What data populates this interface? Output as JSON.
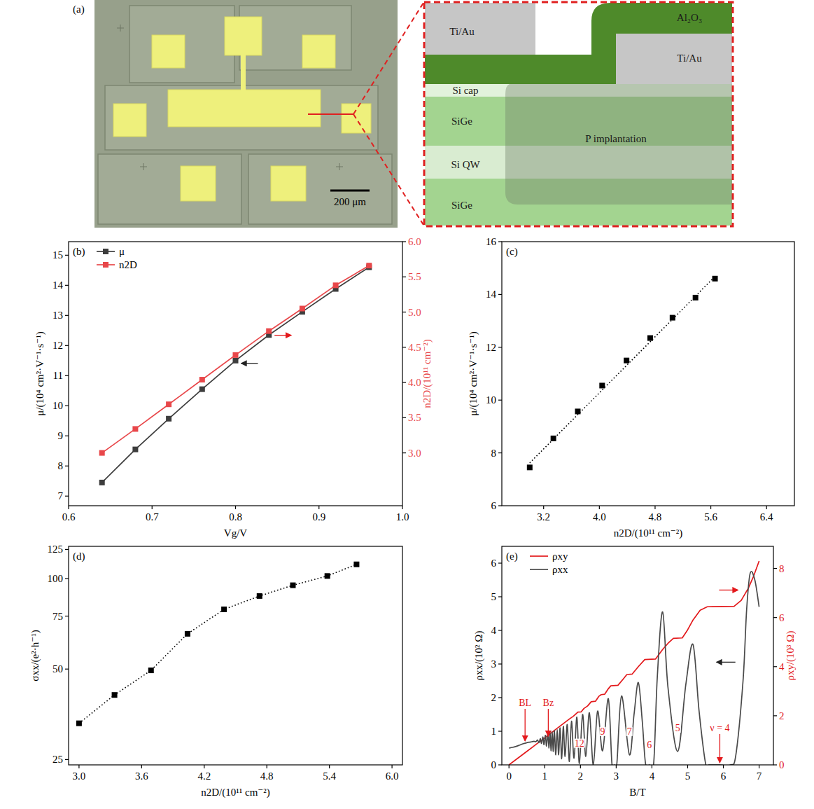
{
  "panel_a": {
    "label": "(a)",
    "scale_bar": "200 μm",
    "layers": {
      "ti_au_left": "Ti/Au",
      "al2o3": "Al₂O₃",
      "ti_au_right": "Ti/Au",
      "si_cap": "Si cap",
      "sige_top": "SiGe",
      "implant": "P implantation",
      "si_qw": "Si QW",
      "sige_bottom": "SiGe"
    }
  },
  "chart_data": [
    {
      "type": "line",
      "title": "(b)",
      "x_label": "Vg/V",
      "y_label": "μ/(10⁴ cm²·V⁻¹·s⁻¹)",
      "y2_label": "n2D/(10¹¹ cm⁻²)",
      "x": [
        0.64,
        0.68,
        0.72,
        0.76,
        0.8,
        0.84,
        0.88,
        0.92,
        0.96
      ],
      "xlim": [
        0.6,
        1.0
      ],
      "xticks": [
        0.6,
        0.7,
        0.8,
        0.9,
        {
          "value": 1,
          "label": "1.0"
        }
      ],
      "ylim": [
        6.68,
        15.45
      ],
      "yticks": [
        7,
        8,
        9,
        10,
        11,
        12,
        13,
        14,
        15
      ],
      "y2lim": [
        2.25,
        6.0
      ],
      "y2ticks": [
        {
          "value": 3,
          "label": "3.0"
        },
        3.5,
        {
          "value": 4,
          "label": "4.0"
        },
        4.5,
        {
          "value": 5,
          "label": "5.0"
        },
        5.5,
        {
          "value": 6,
          "label": "6.0"
        }
      ],
      "legend": "upper left",
      "series": [
        {
          "name": "μ",
          "color": "#3d3d3d",
          "marker": "square",
          "values": [
            7.45,
            8.55,
            9.57,
            10.55,
            11.5,
            12.35,
            13.12,
            13.88,
            14.6
          ]
        },
        {
          "name": "n2D",
          "color": "#e8474a",
          "marker": "square",
          "axis": "y2",
          "values": [
            3.0,
            3.34,
            3.69,
            4.04,
            4.39,
            4.73,
            5.05,
            5.38,
            5.66
          ]
        }
      ]
    },
    {
      "type": "scatter",
      "title": "(c)",
      "x_label": "n2D/(10¹¹ cm⁻²)",
      "y_label": "μ/(10⁴ cm²·V⁻¹·s⁻¹)",
      "xlim": [
        2.6,
        6.8
      ],
      "xticks": [
        3.2,
        {
          "value": 4,
          "label": "4.0"
        },
        4.8,
        5.6,
        6.4
      ],
      "ylim": [
        6,
        16
      ],
      "yticks": [
        6,
        8,
        10,
        12,
        14,
        16
      ],
      "series": [
        {
          "color": "#000000",
          "marker": "square",
          "x": [
            3.0,
            3.34,
            3.69,
            4.04,
            4.39,
            4.73,
            5.05,
            5.38,
            5.66
          ],
          "values": [
            7.45,
            8.55,
            9.57,
            10.55,
            11.5,
            12.35,
            13.12,
            13.88,
            14.6
          ]
        },
        {
          "type": "line",
          "line_style": "dotted",
          "color": "#000000",
          "x": [
            3.0,
            5.66
          ],
          "values": [
            7.62,
            14.68
          ]
        }
      ]
    },
    {
      "type": "line",
      "title": "(d)",
      "x_label": "n2D/(10¹¹ cm⁻²)",
      "y_label": "σxx/(e²·h⁻¹)",
      "log": "y",
      "xlim": [
        2.9,
        6.1
      ],
      "xticks": [
        {
          "value": 3,
          "label": "3.0"
        },
        3.6,
        4.2,
        4.8,
        5.4,
        {
          "value": 6,
          "label": "6.0"
        }
      ],
      "ylim": [
        24,
        128
      ],
      "yticks": [
        25,
        50,
        75,
        100,
        125
      ],
      "series": [
        {
          "color": "#000000",
          "marker": "square",
          "line_style": "dotted",
          "x": [
            3.0,
            3.34,
            3.69,
            4.04,
            4.39,
            4.73,
            5.05,
            5.38,
            5.66
          ],
          "values": [
            33,
            41,
            49.5,
            65.5,
            79,
            87.5,
            95,
            102,
            111.5
          ]
        }
      ]
    },
    {
      "type": "line",
      "title": "(e)",
      "x_label": "B/T",
      "y_label": "ρxx/(10² Ω)",
      "y2_label": "ρxy/(10³ Ω)",
      "xlim": [
        -0.2,
        7.4
      ],
      "xticks": [
        0,
        1,
        2,
        3,
        4,
        5,
        6,
        7
      ],
      "ylim": [
        0,
        6.5
      ],
      "yticks": [
        0,
        1,
        2,
        3,
        4,
        5,
        6
      ],
      "y2lim": [
        0,
        8.9
      ],
      "y2ticks": [
        0,
        2,
        4,
        6,
        8
      ],
      "legend": "upper left",
      "series": [
        {
          "name": "ρxy",
          "color": "#e3191c",
          "axis": "y2",
          "x": [
            0,
            0.5,
            1.0,
            1.5,
            1.7,
            1.8,
            1.93,
            2.02,
            2.1,
            2.2,
            2.3,
            2.42,
            2.52,
            2.58,
            2.68,
            2.78,
            2.85,
            3.05,
            3.2,
            3.3,
            3.45,
            3.62,
            3.8,
            4.1,
            4.3,
            4.45,
            4.6,
            4.85,
            5.0,
            5.15,
            5.35,
            5.55,
            6.3,
            6.5,
            6.7,
            6.85,
            7.0
          ],
          "values": [
            0,
            0.55,
            1.1,
            1.66,
            1.88,
            1.98,
            2.15,
            2.16,
            2.3,
            2.4,
            2.57,
            2.59,
            2.8,
            2.86,
            2.88,
            3.1,
            3.22,
            3.24,
            3.5,
            3.68,
            3.7,
            4.0,
            4.29,
            4.31,
            4.7,
            4.95,
            5.15,
            5.17,
            5.5,
            5.9,
            6.3,
            6.44,
            6.46,
            6.7,
            7.2,
            7.7,
            8.3
          ]
        },
        {
          "name": "ρxx",
          "color": "#4a4a4a",
          "x": [
            0,
            0.1,
            0.2,
            0.3,
            0.4,
            0.5,
            0.6,
            0.7,
            0.75,
            0.8,
            0.84,
            0.88,
            0.91,
            0.95,
            0.98,
            1.02,
            1.05,
            1.09,
            1.12,
            1.15,
            1.18,
            1.21,
            1.24,
            1.27,
            1.31,
            1.35,
            1.39,
            1.43,
            1.475,
            1.52,
            1.57,
            1.63,
            1.69,
            1.75,
            1.82,
            1.9,
            1.97,
            2.06,
            2.15,
            2.25,
            2.36,
            2.48,
            2.62,
            2.78,
            2.88,
            2.95,
            3.02,
            3.15,
            3.37,
            3.5,
            3.62,
            3.73,
            3.82,
            3.93,
            4.05,
            4.15,
            4.3,
            4.45,
            4.72,
            4.95,
            5.15,
            5.32,
            5.5,
            5.6,
            5.9,
            6.2,
            6.35,
            6.55,
            6.65,
            6.75,
            6.88,
            7.0
          ],
          "values": [
            0.5,
            0.52,
            0.55,
            0.59,
            0.63,
            0.66,
            0.68,
            0.7,
            0.69,
            0.74,
            0.66,
            0.78,
            0.64,
            0.83,
            0.6,
            0.88,
            0.56,
            0.93,
            0.5,
            0.95,
            0.42,
            0.98,
            0.4,
            1.02,
            0.3,
            1.05,
            0.3,
            1.1,
            0.18,
            1.15,
            0.25,
            1.2,
            0.1,
            1.3,
            0.2,
            1.42,
            0.04,
            1.5,
            0.25,
            1.55,
            0.0,
            1.6,
            0.42,
            1.97,
            0.05,
            0.0,
            0.05,
            2.05,
            0.3,
            1.5,
            2.45,
            1.3,
            0.05,
            0.0,
            0.05,
            2.6,
            4.55,
            2.3,
            0.4,
            2.4,
            3.58,
            1.6,
            0.05,
            0.0,
            0.0,
            0.0,
            0.3,
            2.5,
            4.6,
            5.7,
            5.5,
            4.7
          ]
        }
      ],
      "annotations": [
        {
          "text": "BL",
          "x": 0.45,
          "y": 1.75,
          "marker": "arrow"
        },
        {
          "text": "Bz",
          "x": 1.1,
          "y": 1.75,
          "marker": "arrow"
        },
        {
          "text": "12",
          "x": 1.97,
          "y": 0.55
        },
        {
          "text": "9",
          "x": 2.62,
          "y": 0.9
        },
        {
          "text": "7",
          "x": 3.37,
          "y": 0.9
        },
        {
          "text": "6",
          "x": 3.93,
          "y": 0.5
        },
        {
          "text": "5",
          "x": 4.72,
          "y": 1.0
        },
        {
          "text": "ν = 4",
          "x": 5.9,
          "y": 1.0,
          "marker": "arrow"
        }
      ]
    }
  ]
}
